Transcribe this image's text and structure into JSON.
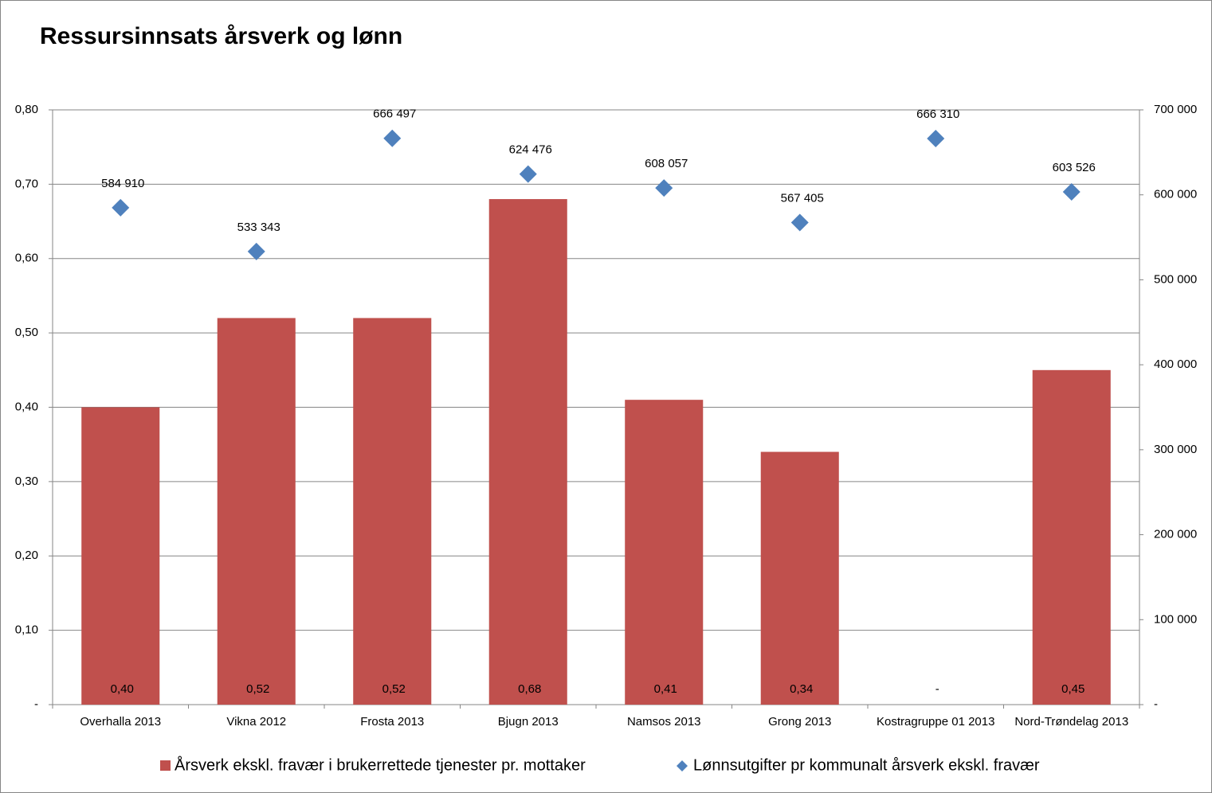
{
  "chart_data": {
    "type": "bar_scatter",
    "title": "Ressursinnsats årsverk og lønn",
    "categories": [
      "Overhalla 2013",
      "Vikna 2012",
      "Frosta 2013",
      "Bjugn 2013",
      "Namsos 2013",
      "Grong 2013",
      "Kostragruppe 01 2013",
      "Nord-Trøndelag 2013"
    ],
    "series": [
      {
        "name": "Årsverk ekskl. fravær i brukerrettede tjenester pr. mottaker",
        "type": "bar",
        "color": "#c0504d",
        "values": [
          0.4,
          0.52,
          0.52,
          0.68,
          0.41,
          0.34,
          0,
          0.45
        ],
        "value_labels": [
          "0,40",
          "0,52",
          "0,52",
          "0,68",
          "0,41",
          "0,34",
          "-",
          "0,45"
        ]
      },
      {
        "name": "Lønnsutgifter pr kommunalt årsverk ekskl. fravær",
        "type": "scatter",
        "axis": "y2",
        "color": "#4f81bd",
        "values": [
          584910,
          533343,
          666497,
          624476,
          608057,
          567405,
          666310,
          603526
        ],
        "value_labels": [
          "584 910",
          "533 343",
          "666 497",
          "624 476",
          "608 057",
          "567 405",
          "666 310",
          "603 526"
        ]
      }
    ],
    "ylim": [
      0,
      0.8
    ],
    "yticks": [
      {
        "value": 0,
        "label": "-"
      },
      {
        "value": 0.1,
        "label": "0,10"
      },
      {
        "value": 0.2,
        "label": "0,20"
      },
      {
        "value": 0.3,
        "label": "0,30"
      },
      {
        "value": 0.4,
        "label": "0,40"
      },
      {
        "value": 0.5,
        "label": "0,50"
      },
      {
        "value": 0.6,
        "label": "0,60"
      },
      {
        "value": 0.7,
        "label": "0,70"
      },
      {
        "value": 0.8,
        "label": "0,80"
      }
    ],
    "y2lim": [
      0,
      700000
    ],
    "y2ticks": [
      {
        "value": 0,
        "label": "-"
      },
      {
        "value": 100000,
        "label": "100 000"
      },
      {
        "value": 200000,
        "label": "200 000"
      },
      {
        "value": 300000,
        "label": "300 000"
      },
      {
        "value": 400000,
        "label": "400 000"
      },
      {
        "value": 500000,
        "label": "500 000"
      },
      {
        "value": 600000,
        "label": "600 000"
      },
      {
        "value": 700000,
        "label": "700 000"
      }
    ],
    "grid": true,
    "legend": "bottom"
  }
}
